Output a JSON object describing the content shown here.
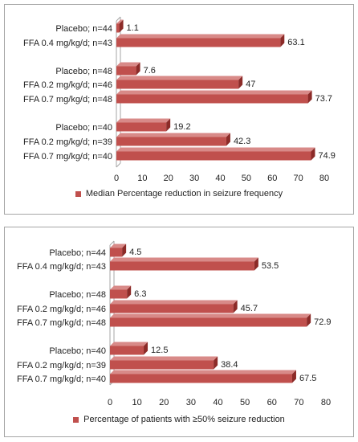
{
  "colors": {
    "bar": "#c0504d",
    "bar_dark": "#8c2b28",
    "bar_light": "#d88a88",
    "wall": "#a6a6a6"
  },
  "chart_data": [
    {
      "type": "bar",
      "orientation": "horizontal",
      "style": "3d",
      "categories": [
        "Placebo; n=44",
        "FFA 0.4 mg/kg/d; n=43",
        "Placebo; n=48",
        "FFA 0.2 mg/kg/d; n=46",
        "FFA 0.7 mg/kg/d; n=48",
        "Placebo; n=40",
        "FFA 0.2 mg/kg/d; n=39",
        "FFA 0.7 mg/kg/d; n=40"
      ],
      "groups": [
        2,
        3,
        3
      ],
      "series": [
        {
          "name": "Median Percentage reduction in seizure frequency",
          "values": [
            1.1,
            63.1,
            7.6,
            47,
            73.7,
            19.2,
            42.3,
            74.9
          ],
          "labels": [
            "1.1",
            "63.1",
            "7.6",
            "47",
            "73.7",
            "19.2",
            "42.3",
            "74.9"
          ]
        }
      ],
      "xlim": [
        0,
        80
      ],
      "ticks": [
        "0",
        "10",
        "20",
        "30",
        "40",
        "50",
        "60",
        "70",
        "80"
      ],
      "grid": false,
      "legend": "bottom"
    },
    {
      "type": "bar",
      "orientation": "horizontal",
      "style": "3d",
      "categories": [
        "Placebo; n=44",
        "FFA 0.4 mg/kg/d; n=43",
        "Placebo; n=48",
        "FFA 0.2 mg/kg/d; n=46",
        "FFA 0.7 mg/kg/d; n=48",
        "Placebo; n=40",
        "FFA 0.2 mg/kg/d; n=39",
        "FFA 0.7 mg/kg/d; n=40"
      ],
      "groups": [
        2,
        3,
        3
      ],
      "series": [
        {
          "name": "Percentage of patients with ≥50% seizure reduction",
          "values": [
            4.5,
            53.5,
            6.3,
            45.7,
            72.9,
            12.5,
            38.4,
            67.5
          ],
          "labels": [
            "4.5",
            "53.5",
            "6.3",
            "45.7",
            "72.9",
            "12.5",
            "38.4",
            "67.5"
          ]
        }
      ],
      "xlim": [
        0,
        80
      ],
      "ticks": [
        "0",
        "10",
        "20",
        "30",
        "40",
        "50",
        "60",
        "70",
        "80"
      ],
      "grid": false,
      "legend": "bottom"
    }
  ]
}
